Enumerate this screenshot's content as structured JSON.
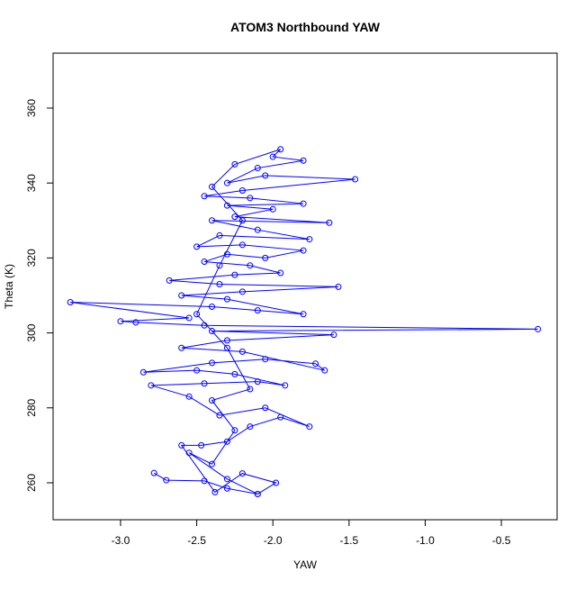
{
  "chart_data": {
    "type": "line",
    "title": "ATOM3 Northbound YAW",
    "x_label": "YAW",
    "y_label": "Theta (K)",
    "markers": true,
    "grid": false,
    "x": [
      -2.78,
      -2.7,
      -2.45,
      -2.3,
      -2.1,
      -1.98,
      -2.2,
      -2.38,
      -2.6,
      -2.47,
      -2.3,
      -2.15,
      -1.95,
      -1.76,
      -2.05,
      -2.35,
      -2.55,
      -2.8,
      -2.45,
      -2.1,
      -1.92,
      -2.25,
      -2.5,
      -2.85,
      -2.4,
      -2.05,
      -1.72,
      -1.66,
      -2.2,
      -2.6,
      -2.3,
      -1.6,
      -2.4,
      -0.26,
      -2.45,
      -2.9,
      -3.0,
      -2.55,
      -3.33,
      -2.4,
      -2.1,
      -1.8,
      -2.3,
      -2.6,
      -2.2,
      -1.57,
      -2.35,
      -2.68,
      -2.25,
      -1.95,
      -2.15,
      -2.45,
      -2.3,
      -2.05,
      -1.8,
      -2.2,
      -2.5,
      -2.35,
      -1.76,
      -2.1,
      -2.4,
      -1.63,
      -2.25,
      -2.0,
      -2.3,
      -1.8,
      -2.15,
      -2.45,
      -2.2,
      -1.46,
      -2.05,
      -2.3,
      -2.1,
      -1.8,
      -2.0,
      -1.95,
      -2.25,
      -2.4,
      -2.2,
      -2.35,
      -2.5,
      -2.3,
      -2.15,
      -2.4,
      -2.25,
      -2.4,
      -2.55,
      -2.3,
      -2.1
    ],
    "series": [
      {
        "name": "YAW",
        "color": "#0000ff",
        "values": [
          262.6,
          260.7,
          260.5,
          258.5,
          257.0,
          260.0,
          262.5,
          257.5,
          270.0,
          270.0,
          271.0,
          275.0,
          277.5,
          275.0,
          280.0,
          278.0,
          283.0,
          286.0,
          286.5,
          287.0,
          286.0,
          289.0,
          290.0,
          289.5,
          292.0,
          293.0,
          291.8,
          290.0,
          295.0,
          296.0,
          298.0,
          299.5,
          300.5,
          301.0,
          302.0,
          302.8,
          303.1,
          304.0,
          308.2,
          307.0,
          306.0,
          305.0,
          309.0,
          310.0,
          311.0,
          312.3,
          313.0,
          314.0,
          315.5,
          316.0,
          318.0,
          319.0,
          321.0,
          320.0,
          322.0,
          323.5,
          323.0,
          326.0,
          325.0,
          327.5,
          330.0,
          329.4,
          331.0,
          333.0,
          334.0,
          334.5,
          336.0,
          336.5,
          338.0,
          341.0,
          342.0,
          340.0,
          344.0,
          346.0,
          347.0,
          349.0,
          345.0,
          339.0,
          330.0,
          318.0,
          305.0,
          296.0,
          285.0,
          282.0,
          274.0,
          265.0,
          268.0,
          261.0,
          257.0
        ]
      }
    ],
    "xlim": [
      -3.443,
      -0.134
    ],
    "ylim": [
      250.14,
      374.66
    ],
    "xticks": [
      {
        "value": -3.0,
        "label": "-3.0"
      },
      -2.5,
      {
        "value": -2.0,
        "label": "-2.0"
      },
      -1.5,
      {
        "value": -1.0,
        "label": "-1.0"
      },
      -0.5
    ],
    "yticks": [
      260,
      280,
      300,
      320,
      340,
      360
    ]
  }
}
